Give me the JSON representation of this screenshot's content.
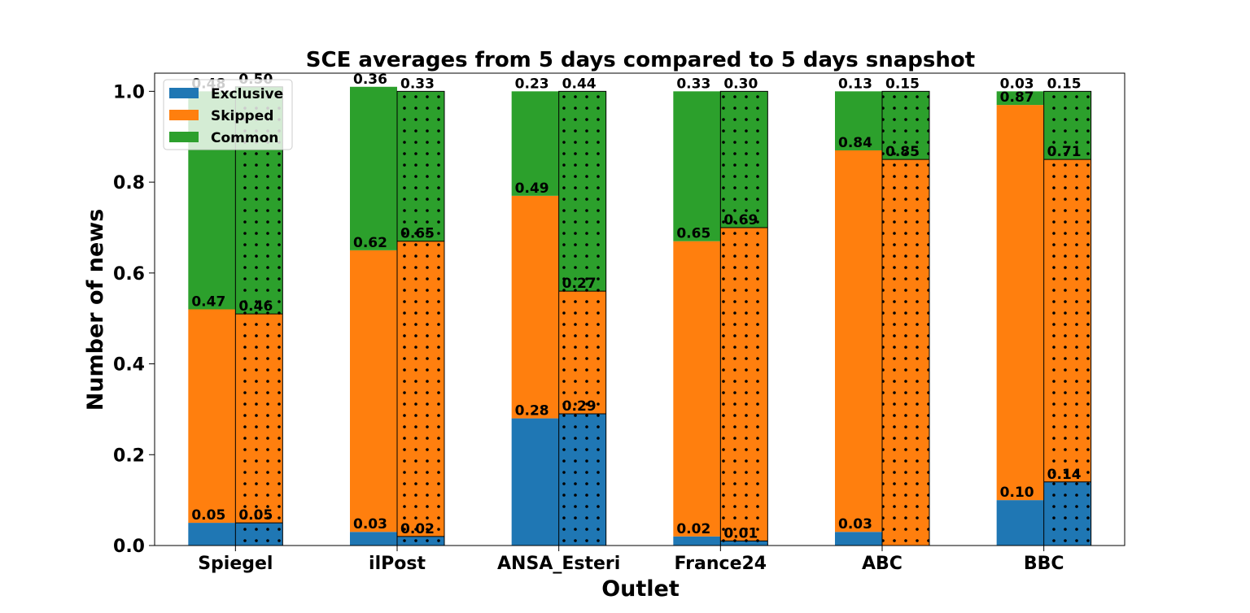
{
  "chart_data": {
    "type": "bar",
    "stacked": true,
    "grouped": true,
    "title": "SCE averages from 5 days compared to 5 days snapshot",
    "xlabel": "Outlet",
    "ylabel": "Number of news",
    "ylim": [
      0,
      1.04
    ],
    "yticks": [
      "0.0",
      "0.2",
      "0.4",
      "0.6",
      "0.8",
      "1.0"
    ],
    "grid": false,
    "legend_position": "top-left",
    "categories": [
      "Spiegel",
      "ilPost",
      "ANSA_Esteri",
      "France24",
      "ABC",
      "BBC"
    ],
    "series": [
      {
        "name": "Exclusive",
        "color": "#1f77b4"
      },
      {
        "name": "Skipped",
        "color": "#ff7f0e"
      },
      {
        "name": "Common",
        "color": "#2ca02c"
      }
    ],
    "groups": [
      {
        "hatch": "none",
        "exclusive": [
          0.05,
          0.03,
          0.28,
          0.02,
          0.03,
          0.1
        ],
        "skipped": [
          0.47,
          0.62,
          0.49,
          0.65,
          0.84,
          0.87
        ],
        "common": [
          0.48,
          0.36,
          0.23,
          0.33,
          0.13,
          0.03
        ]
      },
      {
        "hatch": "dots",
        "exclusive": [
          0.05,
          0.02,
          0.29,
          0.01,
          0.0,
          0.14
        ],
        "skipped": [
          0.46,
          0.65,
          0.27,
          0.69,
          0.85,
          0.71
        ],
        "common": [
          0.5,
          0.33,
          0.44,
          0.3,
          0.15,
          0.15
        ]
      }
    ],
    "labels": [
      {
        "exclusive": [
          "0.05",
          "0.03",
          "0.28",
          "0.02",
          "0.03",
          "0.10"
        ],
        "skipped": [
          "0.47",
          "0.62",
          "0.49",
          "0.65",
          "0.84",
          "0.87"
        ],
        "common": [
          "0.48",
          "0.36",
          "0.23",
          "0.33",
          "0.13",
          "0.03"
        ]
      },
      {
        "exclusive": [
          "0.05",
          "0.02",
          "0.29",
          "0.01",
          "",
          "0.14"
        ],
        "skipped": [
          "0.46",
          "0.65",
          "0.27",
          "0.69",
          "0.85",
          "0.71"
        ],
        "common": [
          "0.50",
          "0.33",
          "0.44",
          "0.30",
          "0.15",
          "0.15"
        ]
      }
    ]
  }
}
